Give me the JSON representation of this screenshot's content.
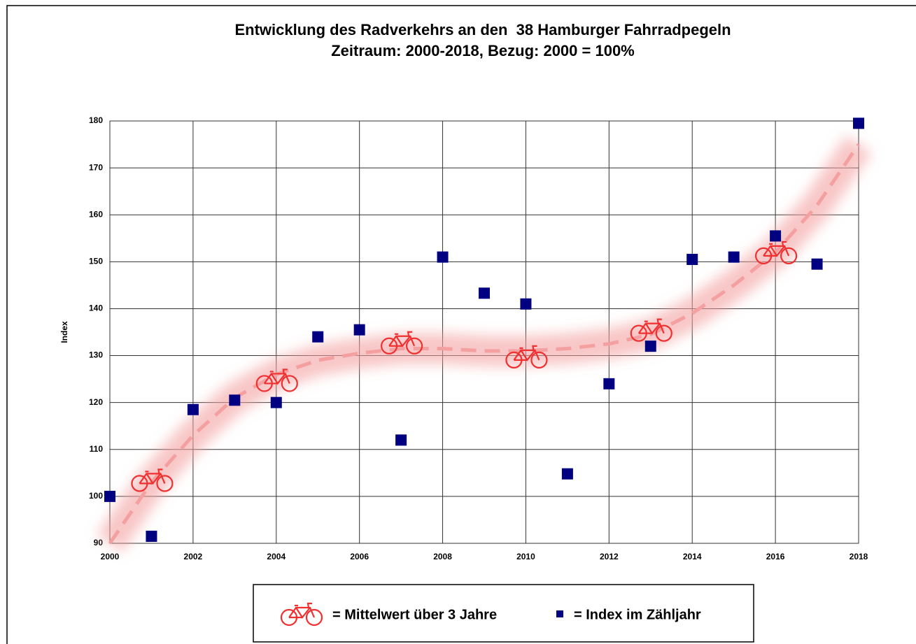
{
  "chart_data": {
    "type": "scatter",
    "title": "Entwicklung des Radverkehrs an den  38 Hamburger Fahrradpegeln",
    "subtitle": "Zeitraum: 2000-2018, Bezug: 2000 = 100%",
    "y_label": "Index",
    "xlim": [
      2000,
      2018
    ],
    "xticks": [
      2000,
      2002,
      2004,
      2006,
      2008,
      2010,
      2012,
      2014,
      2016,
      2018
    ],
    "ylim": [
      90,
      180
    ],
    "yticks": [
      90,
      100,
      110,
      120,
      130,
      140,
      150,
      160,
      170,
      180
    ],
    "grid": true,
    "series": [
      {
        "name": "= Mittelwert über 3 Jahre",
        "color": "#f03030",
        "marker": "bike",
        "x": [
          2001,
          2004,
          2007,
          2010,
          2013,
          2016
        ],
        "values": [
          103.5,
          124.8,
          132.8,
          129.8,
          135.5,
          152
        ]
      },
      {
        "name": "= Index im Zähljahr",
        "color": "#000080",
        "marker": "square",
        "x": [
          2000,
          2001,
          2002,
          2003,
          2004,
          2005,
          2006,
          2007,
          2008,
          2009,
          2010,
          2011,
          2012,
          2013,
          2014,
          2015,
          2016,
          2017,
          2018
        ],
        "values": [
          100,
          91.5,
          118.5,
          120.5,
          120,
          134,
          135.5,
          112,
          151,
          143.3,
          141,
          104.8,
          124,
          132,
          150.5,
          151,
          155.5,
          149.5,
          179.5
        ]
      }
    ],
    "trend": {
      "color": "#f4a0a0",
      "x": [
        2000,
        2001,
        2002,
        2003,
        2004,
        2005,
        2006,
        2007,
        2008,
        2009,
        2010,
        2011,
        2012,
        2013,
        2014,
        2015,
        2016,
        2017,
        2018
      ],
      "values": [
        90,
        103,
        113,
        121,
        126,
        129,
        130.5,
        131.5,
        131.5,
        131,
        131,
        131.5,
        132.5,
        134.5,
        139,
        145,
        152,
        162,
        175
      ]
    }
  }
}
